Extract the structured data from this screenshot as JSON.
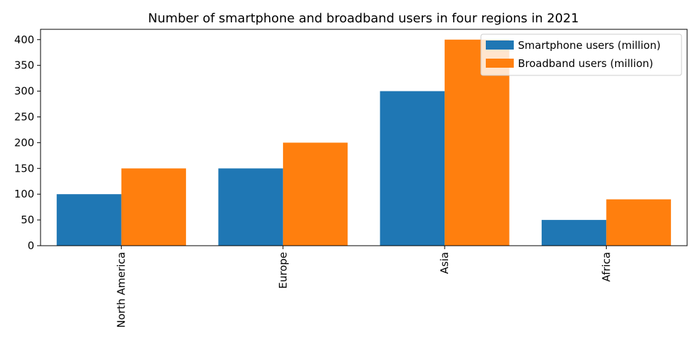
{
  "chart_data": {
    "type": "bar",
    "title": "Number of smartphone and broadband users in four regions in 2021",
    "xlabel": "",
    "ylabel": "",
    "categories": [
      "North America",
      "Europe",
      "Asia",
      "Africa"
    ],
    "series": [
      {
        "name": "Smartphone users (million)",
        "values": [
          100,
          150,
          300,
          50
        ],
        "color": "#1f77b4"
      },
      {
        "name": "Broadband users (million)",
        "values": [
          150,
          200,
          400,
          90
        ],
        "color": "#ff7f0e"
      }
    ],
    "ylim": [
      0,
      420
    ],
    "yticks": [
      0,
      50,
      100,
      150,
      200,
      250,
      300,
      350,
      400
    ],
    "grid": false,
    "legend_position": "top-right"
  }
}
